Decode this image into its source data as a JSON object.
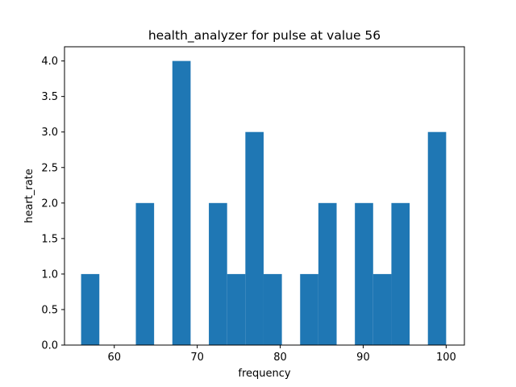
{
  "chart_data": {
    "type": "bar",
    "title": "health_analyzer for pulse at value 56",
    "xlabel": "frequency",
    "ylabel": "heart_rate",
    "bar_color": "#1f77b4",
    "xlim": [
      54,
      102.2
    ],
    "ylim": [
      0,
      4.2
    ],
    "grid": false,
    "x_ticks": [
      60,
      70,
      80,
      90,
      100
    ],
    "y_ticks": [
      0.0,
      0.5,
      1.0,
      1.5,
      2.0,
      2.5,
      3.0,
      3.5,
      4.0
    ],
    "x_tick_labels": [
      "60",
      "70",
      "80",
      "90",
      "100"
    ],
    "y_tick_labels": [
      "0.0",
      "0.5",
      "1.0",
      "1.5",
      "2.0",
      "2.5",
      "3.0",
      "3.5",
      "4.0"
    ],
    "bins": [
      {
        "x0": 56.0,
        "x1": 58.2,
        "value": 1
      },
      {
        "x0": 58.2,
        "x1": 60.4,
        "value": 0
      },
      {
        "x0": 60.4,
        "x1": 62.6,
        "value": 0
      },
      {
        "x0": 62.6,
        "x1": 64.8,
        "value": 2
      },
      {
        "x0": 64.8,
        "x1": 67.0,
        "value": 0
      },
      {
        "x0": 67.0,
        "x1": 69.2,
        "value": 4
      },
      {
        "x0": 69.2,
        "x1": 71.4,
        "value": 0
      },
      {
        "x0": 71.4,
        "x1": 73.6,
        "value": 2
      },
      {
        "x0": 73.6,
        "x1": 75.8,
        "value": 1
      },
      {
        "x0": 75.8,
        "x1": 78.0,
        "value": 3
      },
      {
        "x0": 78.0,
        "x1": 80.2,
        "value": 1
      },
      {
        "x0": 80.2,
        "x1": 82.4,
        "value": 0
      },
      {
        "x0": 82.4,
        "x1": 84.6,
        "value": 1
      },
      {
        "x0": 84.6,
        "x1": 86.8,
        "value": 2
      },
      {
        "x0": 86.8,
        "x1": 89.0,
        "value": 0
      },
      {
        "x0": 89.0,
        "x1": 91.2,
        "value": 2
      },
      {
        "x0": 91.2,
        "x1": 93.4,
        "value": 1
      },
      {
        "x0": 93.4,
        "x1": 95.6,
        "value": 2
      },
      {
        "x0": 95.6,
        "x1": 97.8,
        "value": 0
      },
      {
        "x0": 97.8,
        "x1": 100.0,
        "value": 3
      }
    ]
  }
}
